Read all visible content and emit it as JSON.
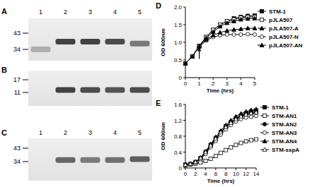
{
  "gels": [
    {
      "label": "A",
      "lanes": [
        "1",
        "2",
        "3",
        "4",
        "5"
      ],
      "markers": [
        43,
        34
      ],
      "band_kda": [
        34,
        38,
        38,
        38,
        37
      ],
      "band_intensity": [
        0.3,
        0.9,
        0.9,
        0.85,
        0.6
      ]
    },
    {
      "label": "B",
      "markers": [
        17,
        11
      ],
      "band_kda": [
        null,
        12,
        12,
        12,
        12
      ],
      "band_intensity": [
        null,
        0.9,
        0.85,
        0.8,
        0.85
      ]
    },
    {
      "label": "C",
      "lanes": [
        "1",
        "2",
        "3",
        "4",
        "5"
      ],
      "markers": [
        43,
        34
      ],
      "band_kda": [
        null,
        35,
        35,
        35,
        35.5
      ],
      "band_intensity": [
        null,
        0.7,
        0.6,
        0.65,
        0.75
      ]
    }
  ],
  "chart_data": [
    {
      "type": "line",
      "title": "D",
      "x_label": "Time (hrs)",
      "y_label": "OD 600nm",
      "x": [
        0,
        0.5,
        1,
        1.5,
        2,
        2.5,
        3,
        3.5,
        4,
        4.5,
        5
      ],
      "xlim": [
        0,
        5
      ],
      "xticks": [
        0,
        1,
        2,
        3,
        4,
        5
      ],
      "ylim": [
        0,
        2
      ],
      "yticks": [
        0,
        0.5,
        {
          "value": 1,
          "label": "1.0"
        },
        1.5,
        {
          "value": 2,
          "label": "2.0"
        }
      ],
      "grid": false,
      "legend": "right",
      "arrow": {
        "x": 1,
        "y": 0.85
      },
      "series": [
        {
          "name": "STM-1",
          "color": "#000000",
          "marker": "square",
          "values": [
            0.4,
            0.6,
            0.9,
            1.15,
            1.35,
            1.5,
            1.6,
            1.68,
            1.72,
            1.75,
            1.76
          ]
        },
        {
          "name": "pJLA507",
          "color": "#000000",
          "marker": "open-square",
          "values": [
            0.4,
            0.6,
            0.9,
            1.15,
            1.35,
            1.5,
            1.6,
            1.65,
            1.7,
            1.72,
            1.72
          ]
        },
        {
          "name": "pJLA507-A",
          "color": "#000000",
          "marker": "triangle",
          "values": [
            0.4,
            0.6,
            0.9,
            1.12,
            1.3,
            1.45,
            1.55,
            1.6,
            1.65,
            1.67,
            1.68
          ]
        },
        {
          "name": "pJLA507-N",
          "color": "#000000",
          "marker": "open-circle",
          "values": [
            0.4,
            0.6,
            0.88,
            1.05,
            1.15,
            1.2,
            1.22,
            1.22,
            1.22,
            1.23,
            1.22
          ]
        },
        {
          "name": "pJLA507-AN",
          "color": "#000000",
          "marker": "triangle",
          "values": [
            0.4,
            0.6,
            0.88,
            1.08,
            1.2,
            1.28,
            1.33,
            1.36,
            1.38,
            1.4,
            1.4
          ]
        }
      ]
    },
    {
      "type": "line",
      "title": "E",
      "x_label": "Time (hrs)",
      "y_label": "OD 600nm",
      "x": [
        0,
        1,
        2,
        3,
        4,
        5,
        6,
        7,
        8,
        9,
        10,
        11,
        12,
        13,
        14
      ],
      "xlim": [
        0,
        14
      ],
      "xticks": [
        0,
        2,
        4,
        6,
        8,
        10,
        12,
        14
      ],
      "ylim": [
        0,
        1.6
      ],
      "yticks": [
        0,
        0.4,
        0.8,
        1.2,
        1.6
      ],
      "grid": false,
      "legend": "right",
      "series": [
        {
          "name": "STM-1",
          "color": "#000000",
          "marker": "square",
          "values": [
            0.08,
            0.1,
            0.15,
            0.25,
            0.4,
            0.58,
            0.75,
            0.9,
            1.05,
            1.15,
            1.25,
            1.32,
            1.38,
            1.42,
            1.45
          ]
        },
        {
          "name": "STM-AN1",
          "color": "#000000",
          "marker": "open-square",
          "values": [
            0.08,
            0.09,
            0.11,
            0.14,
            0.18,
            0.23,
            0.3,
            0.38,
            0.45,
            0.52,
            0.58,
            0.63,
            0.67,
            0.7,
            0.72
          ]
        },
        {
          "name": "STM-AN2",
          "color": "#000000",
          "marker": "circle",
          "values": [
            0.08,
            0.1,
            0.15,
            0.24,
            0.38,
            0.55,
            0.72,
            0.88,
            1.02,
            1.12,
            1.22,
            1.29,
            1.34,
            1.37,
            1.39
          ]
        },
        {
          "name": "STM-AN3",
          "color": "#000000",
          "marker": "open-circle",
          "values": [
            0.08,
            0.1,
            0.14,
            0.22,
            0.35,
            0.52,
            0.68,
            0.84,
            0.97,
            1.08,
            1.17,
            1.23,
            1.27,
            1.29,
            1.31
          ]
        },
        {
          "name": "STM-AN4",
          "color": "#000000",
          "marker": "triangle",
          "values": [
            0.08,
            0.1,
            0.15,
            0.26,
            0.42,
            0.6,
            0.78,
            0.94,
            1.08,
            1.2,
            1.3,
            1.37,
            1.42,
            1.46,
            1.48
          ]
        },
        {
          "name": "STM-sspA",
          "color": "#000000",
          "marker": "open-triangle",
          "values": [
            0.08,
            0.1,
            0.15,
            0.25,
            0.4,
            0.57,
            0.74,
            0.9,
            1.03,
            1.14,
            1.23,
            1.3,
            1.35,
            1.38,
            1.4
          ]
        }
      ]
    }
  ]
}
